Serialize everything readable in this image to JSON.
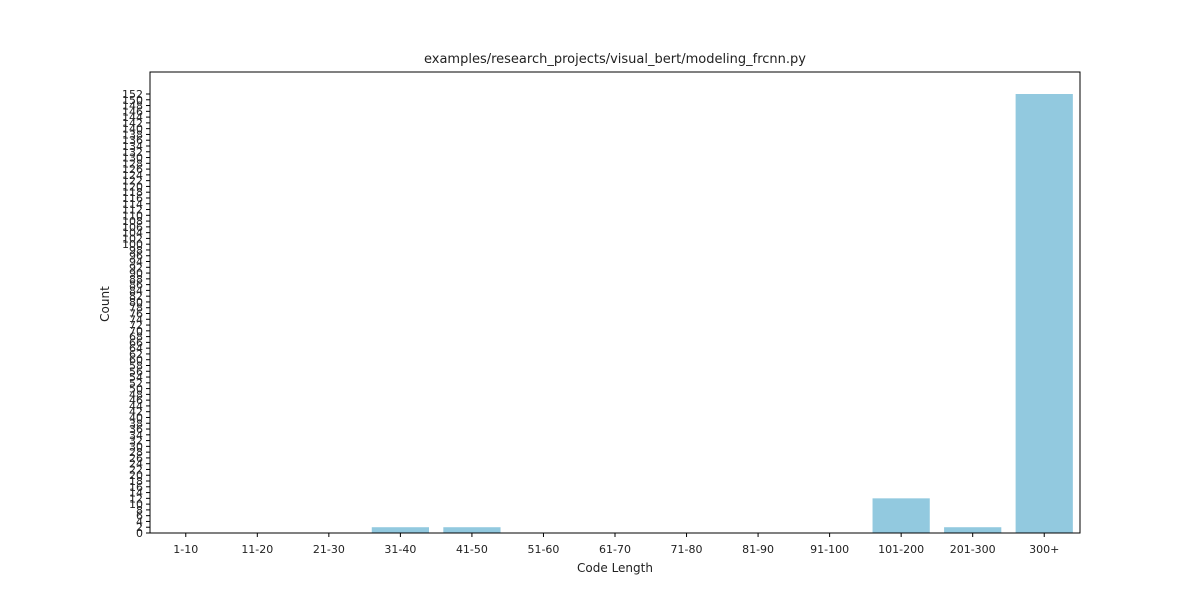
{
  "chart_data": {
    "type": "bar",
    "title": "examples/research_projects/visual_bert/modeling_frcnn.py",
    "xlabel": "Code Length",
    "ylabel": "Count",
    "categories": [
      "1-10",
      "11-20",
      "21-30",
      "31-40",
      "41-50",
      "51-60",
      "61-70",
      "71-80",
      "81-90",
      "91-100",
      "101-200",
      "201-300",
      "300+"
    ],
    "values": [
      0,
      0,
      0,
      2,
      2,
      0,
      0,
      0,
      0,
      0,
      12,
      2,
      152
    ],
    "ylim": [
      0,
      152
    ],
    "yticks": [
      0,
      2,
      4,
      6,
      8,
      10,
      12,
      14,
      16,
      18,
      20,
      22,
      24,
      26,
      28,
      30,
      32,
      34,
      36,
      38,
      40,
      42,
      44,
      46,
      48,
      50,
      52,
      54,
      56,
      58,
      60,
      62,
      64,
      66,
      68,
      70,
      72,
      74,
      76,
      78,
      80,
      82,
      84,
      86,
      88,
      90,
      92,
      94,
      96,
      98,
      100,
      102,
      104,
      106,
      108,
      110,
      112,
      114,
      116,
      118,
      120,
      122,
      124,
      126,
      128,
      130,
      132,
      134,
      136,
      138,
      140,
      142,
      144,
      146,
      148,
      150,
      152
    ],
    "bar_color": "#92c9df",
    "grid": false,
    "legend": "none"
  }
}
